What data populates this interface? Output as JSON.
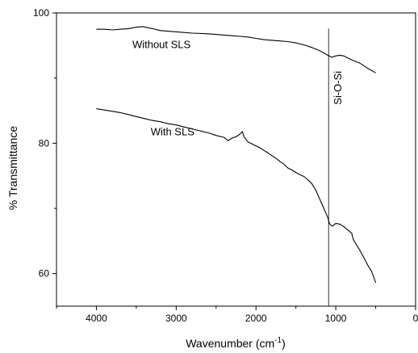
{
  "chart_data": {
    "type": "line",
    "title": "",
    "xlabel": "Wavenumber (cm",
    "xlabel_sup": "-1",
    "xlabel_close": ")",
    "ylabel": "% Transmittance",
    "xlim": [
      4500,
      0
    ],
    "ylim": [
      55,
      100
    ],
    "xticks": [
      4000,
      3000,
      2000,
      1000,
      0
    ],
    "yticks": [
      60,
      80,
      100
    ],
    "grid": false,
    "series": [
      {
        "name": "Without SLS",
        "x": [
          4000,
          3900,
          3800,
          3700,
          3600,
          3500,
          3420,
          3300,
          3200,
          3000,
          2800,
          2600,
          2400,
          2300,
          2200,
          2100,
          2000,
          1900,
          1800,
          1700,
          1600,
          1500,
          1400,
          1300,
          1200,
          1100,
          1050,
          1000,
          950,
          900,
          850,
          800,
          700,
          600,
          500
        ],
        "y": [
          97.5,
          97.5,
          97.4,
          97.5,
          97.6,
          97.8,
          97.9,
          97.6,
          97.3,
          97.1,
          96.9,
          96.8,
          96.6,
          96.5,
          96.4,
          96.3,
          96.1,
          95.9,
          95.8,
          95.7,
          95.6,
          95.4,
          95.1,
          94.7,
          94.2,
          93.5,
          93.2,
          93.4,
          93.5,
          93.4,
          93.1,
          92.8,
          92.3,
          91.5,
          90.8
        ]
      },
      {
        "name": "With SLS",
        "x": [
          4000,
          3900,
          3800,
          3700,
          3600,
          3500,
          3400,
          3300,
          3200,
          3100,
          3000,
          2900,
          2800,
          2700,
          2600,
          2500,
          2400,
          2350,
          2300,
          2250,
          2200,
          2170,
          2150,
          2100,
          2050,
          2000,
          1950,
          1900,
          1850,
          1800,
          1750,
          1700,
          1650,
          1600,
          1550,
          1500,
          1450,
          1400,
          1350,
          1300,
          1250,
          1200,
          1150,
          1100,
          1080,
          1060,
          1040,
          1000,
          950,
          900,
          850,
          800,
          780,
          750,
          700,
          650,
          600,
          550,
          500
        ],
        "y": [
          85.3,
          85.1,
          84.9,
          84.7,
          84.4,
          84.1,
          83.8,
          83.5,
          83.3,
          83.0,
          82.8,
          82.5,
          82.2,
          81.9,
          81.6,
          81.2,
          80.9,
          80.4,
          80.8,
          81.0,
          81.4,
          81.8,
          81.0,
          80.2,
          79.9,
          79.6,
          79.3,
          78.9,
          78.5,
          78.1,
          77.7,
          77.2,
          76.8,
          76.2,
          75.9,
          75.5,
          75.2,
          74.9,
          74.4,
          73.8,
          72.8,
          71.4,
          70.0,
          68.6,
          67.7,
          67.4,
          67.3,
          67.7,
          67.6,
          67.2,
          66.7,
          66.2,
          65.2,
          64.6,
          63.6,
          62.5,
          61.3,
          60.3,
          58.6
        ]
      }
    ],
    "annotations": [
      {
        "text": "Without SLS",
        "x": 3550,
        "y": 94.6
      },
      {
        "text": "With SLS",
        "x": 3320,
        "y": 81.2
      }
    ],
    "reference_line": {
      "x": 1090,
      "y_top": 97.6,
      "label": "Si-O-Si",
      "label_y": 88.5
    }
  }
}
